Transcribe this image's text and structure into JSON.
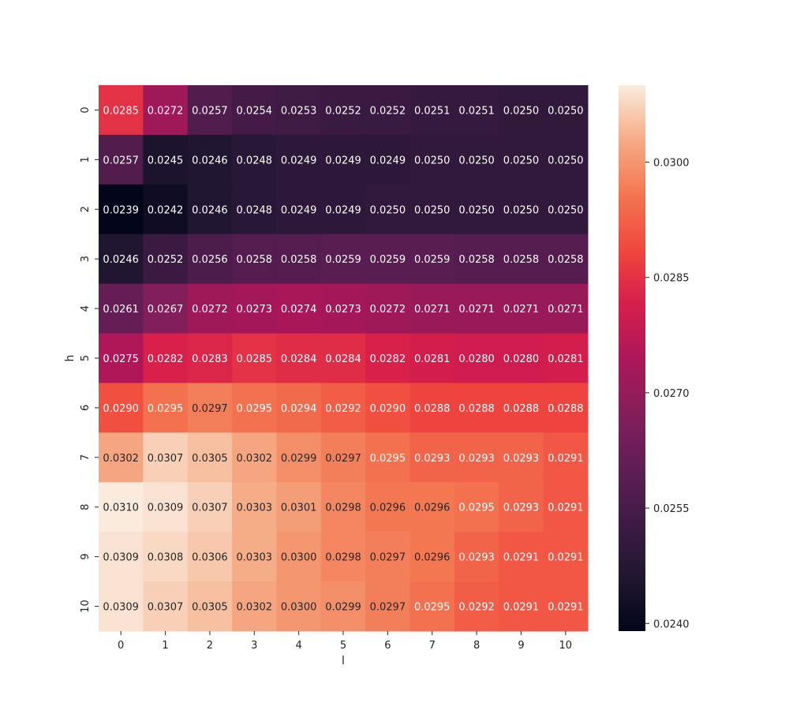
{
  "chart_data": {
    "type": "heatmap",
    "title": "",
    "xlabel": "l",
    "ylabel": "h",
    "x_categories": [
      "0",
      "1",
      "2",
      "3",
      "4",
      "5",
      "6",
      "7",
      "8",
      "9",
      "10"
    ],
    "y_categories": [
      "0",
      "1",
      "2",
      "3",
      "4",
      "5",
      "6",
      "7",
      "8",
      "9",
      "10"
    ],
    "values": [
      [
        0.0285,
        0.0272,
        0.0257,
        0.0254,
        0.0253,
        0.0252,
        0.0252,
        0.0251,
        0.0251,
        0.025,
        0.025
      ],
      [
        0.0257,
        0.0245,
        0.0246,
        0.0248,
        0.0249,
        0.0249,
        0.0249,
        0.025,
        0.025,
        0.025,
        0.025
      ],
      [
        0.0239,
        0.0242,
        0.0246,
        0.0248,
        0.0249,
        0.0249,
        0.025,
        0.025,
        0.025,
        0.025,
        0.025
      ],
      [
        0.0246,
        0.0252,
        0.0256,
        0.0258,
        0.0258,
        0.0259,
        0.0259,
        0.0259,
        0.0258,
        0.0258,
        0.0258
      ],
      [
        0.0261,
        0.0267,
        0.0272,
        0.0273,
        0.0274,
        0.0273,
        0.0272,
        0.0271,
        0.0271,
        0.0271,
        0.0271
      ],
      [
        0.0275,
        0.0282,
        0.0283,
        0.0285,
        0.0284,
        0.0284,
        0.0282,
        0.0281,
        0.028,
        0.028,
        0.0281
      ],
      [
        0.029,
        0.0295,
        0.0297,
        0.0295,
        0.0294,
        0.0292,
        0.029,
        0.0288,
        0.0288,
        0.0288,
        0.0288
      ],
      [
        0.0302,
        0.0307,
        0.0305,
        0.0302,
        0.0299,
        0.0297,
        0.0295,
        0.0293,
        0.0293,
        0.0293,
        0.0291
      ],
      [
        0.031,
        0.0309,
        0.0307,
        0.0303,
        0.0301,
        0.0298,
        0.0296,
        0.0296,
        0.0295,
        0.0293,
        0.0291
      ],
      [
        0.0309,
        0.0308,
        0.0306,
        0.0303,
        0.03,
        0.0298,
        0.0297,
        0.0296,
        0.0293,
        0.0291,
        0.0291
      ],
      [
        0.0309,
        0.0307,
        0.0305,
        0.0302,
        0.03,
        0.0299,
        0.0297,
        0.0295,
        0.0292,
        0.0291,
        0.0291
      ]
    ],
    "value_format_decimals": 4,
    "colorscale": "rocket",
    "colorbar": {
      "min": 0.0239,
      "max": 0.031,
      "ticks": [
        "0.0240",
        "0.0255",
        "0.0270",
        "0.0285",
        "0.0300"
      ]
    },
    "grid": false,
    "legend": "colorbar-right"
  }
}
